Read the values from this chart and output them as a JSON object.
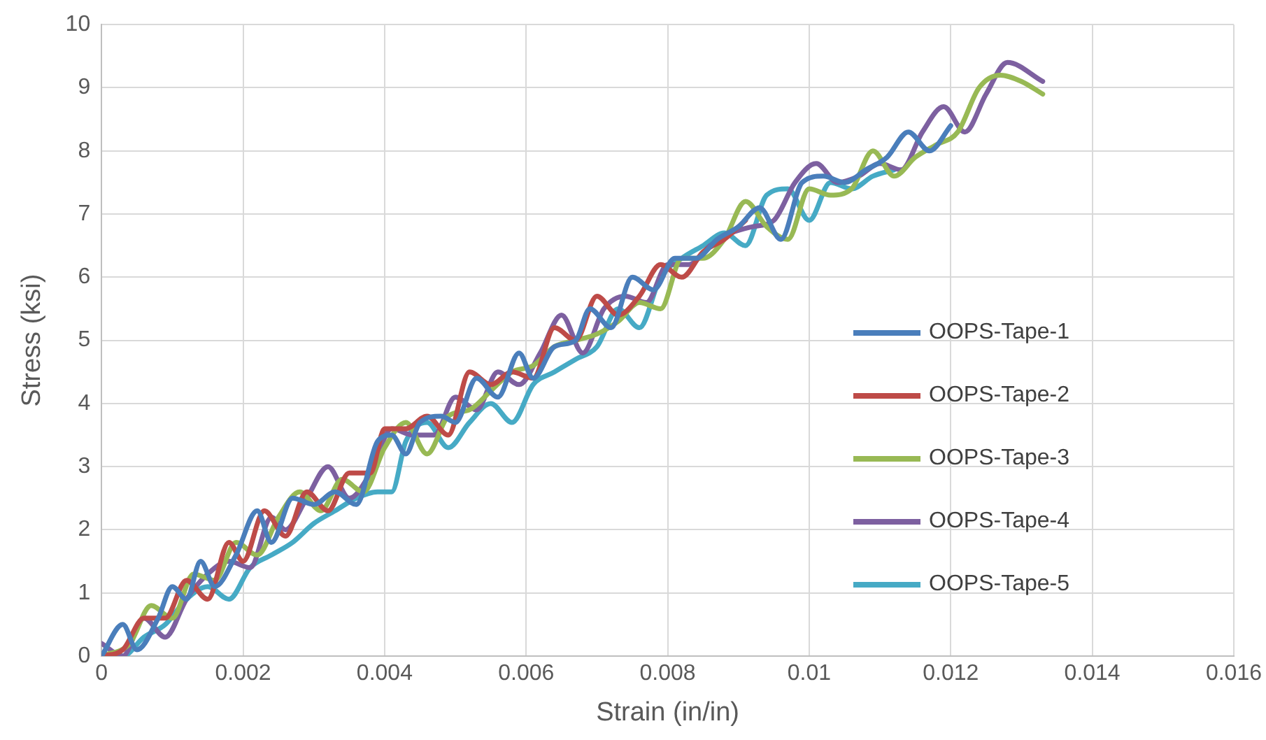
{
  "chart_data": {
    "type": "line",
    "xlabel": "Strain (in/in)",
    "ylabel": "Stress (ksi)",
    "xlim": [
      0,
      0.016
    ],
    "xticks": [
      0,
      0.002,
      0.004,
      0.006,
      0.008,
      0.01,
      0.012,
      0.014,
      0.016
    ],
    "ylim": [
      0,
      10
    ],
    "yticks": [
      0,
      1,
      2,
      3,
      4,
      5,
      6,
      7,
      8,
      9,
      10
    ],
    "grid": true,
    "legend": "right",
    "marker": "none",
    "line_style": "solid",
    "series": [
      {
        "name": "OOPS-Tape-1",
        "color": "#4a7ebb",
        "x": [
          0,
          0.0003,
          0.0005,
          0.0008,
          0.001,
          0.0012,
          0.0014,
          0.0016,
          0.0019,
          0.0022,
          0.0024,
          0.0027,
          0.003,
          0.0033,
          0.0036,
          0.0039,
          0.0041,
          0.0043,
          0.0045,
          0.0048,
          0.005,
          0.0053,
          0.0056,
          0.0059,
          0.0061,
          0.0064,
          0.0067,
          0.0069,
          0.0072,
          0.0075,
          0.0078,
          0.0081,
          0.0084,
          0.0087,
          0.009,
          0.0093,
          0.0096,
          0.0099,
          0.0102,
          0.0105,
          0.0108,
          0.0111,
          0.0114,
          0.0117,
          0.012
        ],
        "values": [
          0,
          0.5,
          0.1,
          0.6,
          1.1,
          0.9,
          1.5,
          1.1,
          1.6,
          2.3,
          1.8,
          2.5,
          2.4,
          2.6,
          2.4,
          3.4,
          3.5,
          3.2,
          3.7,
          3.8,
          3.7,
          4.4,
          4.1,
          4.8,
          4.4,
          4.9,
          5.0,
          5.5,
          5.2,
          6.0,
          5.8,
          6.3,
          6.3,
          6.6,
          6.8,
          7.1,
          6.6,
          7.5,
          7.6,
          7.5,
          7.7,
          7.9,
          8.3,
          8.0,
          8.4
        ]
      },
      {
        "name": "OOPS-Tape-2",
        "color": "#be4b48",
        "x": [
          0,
          0.0003,
          0.0006,
          0.0009,
          0.0012,
          0.0015,
          0.0018,
          0.002,
          0.0023,
          0.0026,
          0.0029,
          0.0032,
          0.0035,
          0.0038,
          0.004,
          0.0043,
          0.0046,
          0.0049,
          0.0052,
          0.0055,
          0.0058,
          0.0061,
          0.0064,
          0.0067,
          0.007,
          0.0073,
          0.0076,
          0.0079,
          0.0082,
          0.0085,
          0.0088,
          0.0091
        ],
        "values": [
          0,
          0.1,
          0.6,
          0.6,
          1.2,
          0.9,
          1.8,
          1.5,
          2.3,
          1.9,
          2.6,
          2.3,
          2.9,
          2.9,
          3.6,
          3.6,
          3.8,
          3.5,
          4.5,
          4.3,
          4.5,
          4.4,
          5.2,
          5.0,
          5.7,
          5.4,
          5.7,
          6.2,
          6.0,
          6.4,
          6.6,
          6.9
        ]
      },
      {
        "name": "OOPS-Tape-3",
        "color": "#98b954",
        "x": [
          0,
          0.0004,
          0.0007,
          0.001,
          0.0013,
          0.0016,
          0.0019,
          0.0022,
          0.0025,
          0.0028,
          0.0031,
          0.0034,
          0.0037,
          0.004,
          0.0043,
          0.0046,
          0.0049,
          0.0052,
          0.0055,
          0.0058,
          0.0061,
          0.0064,
          0.0067,
          0.007,
          0.0073,
          0.0076,
          0.0079,
          0.0082,
          0.0085,
          0.0088,
          0.0091,
          0.0094,
          0.0097,
          0.01,
          0.0103,
          0.0106,
          0.0109,
          0.0112,
          0.0115,
          0.0118,
          0.0121,
          0.0124,
          0.0127,
          0.013,
          0.0133
        ],
        "values": [
          0,
          0.2,
          0.8,
          0.6,
          1.3,
          1.2,
          1.8,
          1.6,
          2.2,
          2.6,
          2.3,
          2.8,
          2.6,
          3.3,
          3.7,
          3.2,
          3.8,
          3.9,
          4.2,
          4.5,
          4.6,
          4.9,
          5.0,
          5.1,
          5.3,
          5.6,
          5.5,
          6.3,
          6.3,
          6.6,
          7.2,
          6.8,
          6.6,
          7.4,
          7.3,
          7.4,
          8.0,
          7.6,
          7.9,
          8.1,
          8.3,
          9.0,
          9.2,
          9.1,
          8.9
        ]
      },
      {
        "name": "OOPS-Tape-4",
        "color": "#7d60a0",
        "x": [
          0,
          0.0003,
          0.0006,
          0.0009,
          0.0012,
          0.0015,
          0.0018,
          0.0021,
          0.0024,
          0.0026,
          0.0029,
          0.0032,
          0.0035,
          0.0038,
          0.0041,
          0.0044,
          0.0047,
          0.005,
          0.0053,
          0.0056,
          0.0059,
          0.0062,
          0.0065,
          0.0068,
          0.0071,
          0.0074,
          0.0077,
          0.008,
          0.0083,
          0.0086,
          0.0089,
          0.0092,
          0.0095,
          0.0098,
          0.0101,
          0.0104,
          0.0107,
          0.011,
          0.0113,
          0.0116,
          0.0119,
          0.0122,
          0.0125,
          0.0128,
          0.0133
        ],
        "values": [
          0.2,
          0,
          0.6,
          0.3,
          0.9,
          1.3,
          1.5,
          1.4,
          2.2,
          2.0,
          2.5,
          3.0,
          2.5,
          2.9,
          3.6,
          3.5,
          3.5,
          4.1,
          3.9,
          4.5,
          4.3,
          4.8,
          5.4,
          4.8,
          5.5,
          5.7,
          5.6,
          6.2,
          6.2,
          6.5,
          6.7,
          6.8,
          6.9,
          7.5,
          7.8,
          7.5,
          7.6,
          7.8,
          7.7,
          8.3,
          8.7,
          8.3,
          8.9,
          9.4,
          9.1
        ]
      },
      {
        "name": "OOPS-Tape-5",
        "color": "#46aac5",
        "x": [
          0,
          0.0003,
          0.0006,
          0.0009,
          0.0012,
          0.0015,
          0.0018,
          0.0021,
          0.0024,
          0.0027,
          0.003,
          0.0033,
          0.0036,
          0.0039,
          0.0041,
          0.0043,
          0.0046,
          0.0049,
          0.0052,
          0.0055,
          0.0058,
          0.0061,
          0.0064,
          0.0067,
          0.007,
          0.0073,
          0.0076,
          0.0079,
          0.0082,
          0.0085,
          0.0088,
          0.0091,
          0.0094,
          0.0097,
          0.01,
          0.0103,
          0.0106,
          0.0109,
          0.0112
        ],
        "values": [
          0,
          0,
          0.3,
          0.5,
          0.9,
          1.1,
          0.9,
          1.4,
          1.6,
          1.8,
          2.1,
          2.3,
          2.5,
          2.6,
          2.6,
          3.4,
          3.7,
          3.3,
          3.7,
          4.0,
          3.7,
          4.3,
          4.5,
          4.7,
          4.9,
          5.5,
          5.2,
          6.0,
          6.3,
          6.5,
          6.7,
          6.5,
          7.3,
          7.4,
          6.9,
          7.5,
          7.4,
          7.6,
          7.7
        ]
      }
    ]
  }
}
